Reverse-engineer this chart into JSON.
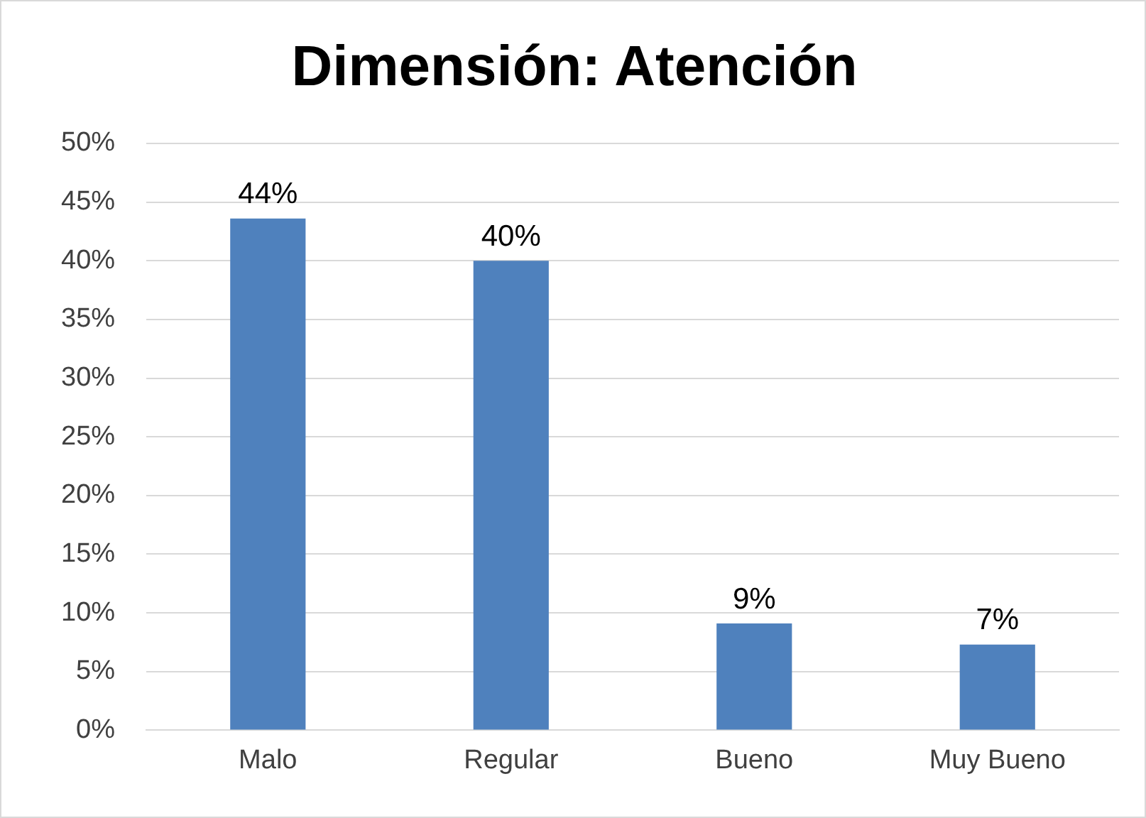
{
  "chart_data": {
    "type": "bar",
    "title": "Dimensión: Atención",
    "categories": [
      "Malo",
      "Regular",
      "Bueno",
      "Muy Bueno"
    ],
    "values": [
      43.6,
      40,
      9.1,
      7.3
    ],
    "value_labels": [
      "44%",
      "40%",
      "9%",
      "7%"
    ],
    "color": "#4f81bd",
    "ylim": [
      0,
      50
    ],
    "yticks": [
      {
        "value": 0,
        "label": "0%"
      },
      {
        "value": 5,
        "label": "5%"
      },
      {
        "value": 10,
        "label": "10%"
      },
      {
        "value": 15,
        "label": "15%"
      },
      {
        "value": 20,
        "label": "20%"
      },
      {
        "value": 25,
        "label": "25%"
      },
      {
        "value": 30,
        "label": "30%"
      },
      {
        "value": 35,
        "label": "35%"
      },
      {
        "value": 40,
        "label": "40%"
      },
      {
        "value": 45,
        "label": "45%"
      },
      {
        "value": 50,
        "label": "50%"
      }
    ],
    "grid": "y",
    "legend": false
  }
}
